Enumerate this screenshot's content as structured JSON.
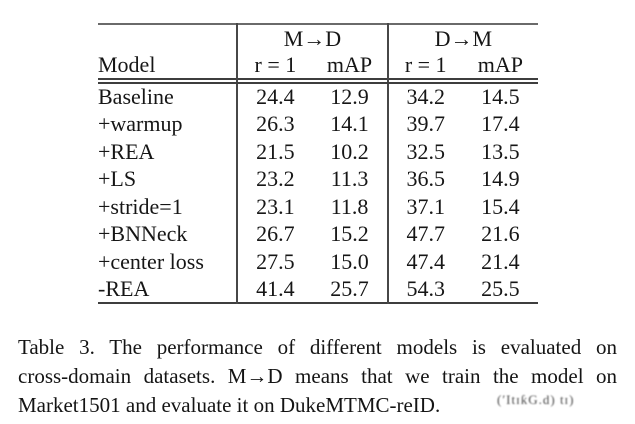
{
  "table": {
    "groups": [
      {
        "label": "M→D"
      },
      {
        "label": "D→M"
      }
    ],
    "header": {
      "model": "Model",
      "r1": "r = 1",
      "map": "mAP"
    },
    "rows": [
      {
        "model": "Baseline",
        "md_r1": "24.4",
        "md_map": "12.9",
        "dm_r1": "34.2",
        "dm_map": "14.5"
      },
      {
        "model": "+warmup",
        "md_r1": "26.3",
        "md_map": "14.1",
        "dm_r1": "39.7",
        "dm_map": "17.4"
      },
      {
        "model": "+REA",
        "md_r1": "21.5",
        "md_map": "10.2",
        "dm_r1": "32.5",
        "dm_map": "13.5"
      },
      {
        "model": "+LS",
        "md_r1": "23.2",
        "md_map": "11.3",
        "dm_r1": "36.5",
        "dm_map": "14.9"
      },
      {
        "model": "+stride=1",
        "md_r1": "23.1",
        "md_map": "11.8",
        "dm_r1": "37.1",
        "dm_map": "15.4"
      },
      {
        "model": "+BNNeck",
        "md_r1": "26.7",
        "md_map": "15.2",
        "dm_r1": "47.7",
        "dm_map": "21.6"
      },
      {
        "model": "+center loss",
        "md_r1": "27.5",
        "md_map": "15.0",
        "dm_r1": "47.4",
        "dm_map": "21.4"
      },
      {
        "model": "-REA",
        "md_r1": "41.4",
        "md_map": "25.7",
        "dm_r1": "54.3",
        "dm_map": "25.5"
      }
    ]
  },
  "caption": {
    "line1": "Table 3. The performance of different models is evaluated on",
    "line2": "cross-domain datasets.  M→D means that we train the model on",
    "line3": "Market1501 and evaluate it on DukeMTMC-reID."
  },
  "watermark": "(ʹItɪƙG.d) tɪ)",
  "colors": {
    "background": "#ffffff",
    "text": "#1c1c1c",
    "rule": "#3e3e3e"
  }
}
